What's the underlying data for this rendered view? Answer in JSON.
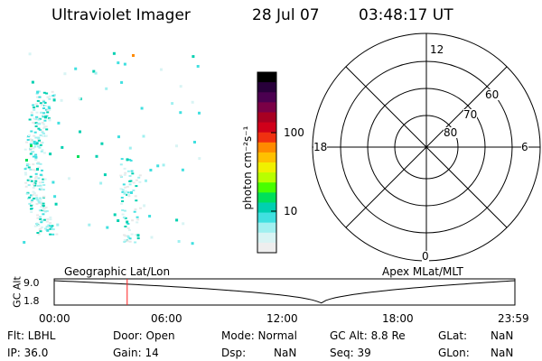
{
  "header": {
    "instrument": "Ultraviolet Imager",
    "date": "28 Jul 07",
    "time": "03:48:17 UT"
  },
  "colorbar": {
    "unit_label": "photon cm⁻²s⁻¹",
    "ticks": [
      "100",
      "10"
    ],
    "colors": [
      "#000000",
      "#28003a",
      "#4b0050",
      "#7a0046",
      "#a80022",
      "#d0001a",
      "#f03010",
      "#ff8a00",
      "#ffc000",
      "#f0f000",
      "#b8ff00",
      "#48ff00",
      "#00e05a",
      "#00d0b0",
      "#40e0e0",
      "#a0f0f0",
      "#d8f4f4",
      "#eeeeee"
    ]
  },
  "polar_plot": {
    "mlt_labels": [
      "12",
      "18",
      "6",
      "0"
    ],
    "lat_labels": [
      "60",
      "70",
      "80"
    ]
  },
  "timeline": {
    "y_axis_label": "GC Alt",
    "y_ticks": [
      "9.0",
      "1.8"
    ],
    "left_label": "Geographic Lat/Lon",
    "right_label": "Apex  MLat/MLT",
    "x_ticks": [
      "00:00",
      "06:00",
      "12:00",
      "18:00",
      "23:59"
    ],
    "current_time_fraction": 0.1584,
    "marker_color": "#ff2020"
  },
  "info": {
    "flt": "Flt: LBHL",
    "ip": "IP: 36.0",
    "door": "Door: Open",
    "gain": "Gain: 14",
    "mode": "Mode: Normal",
    "dsp": "Dsp:",
    "dsp_value": "NaN",
    "gc_alt": "GC Alt: 8.8 Re",
    "seq": "Seq: 39",
    "glat": "GLat:",
    "glat_value": "NaN",
    "glon": "GLon:",
    "glon_value": "NaN"
  }
}
